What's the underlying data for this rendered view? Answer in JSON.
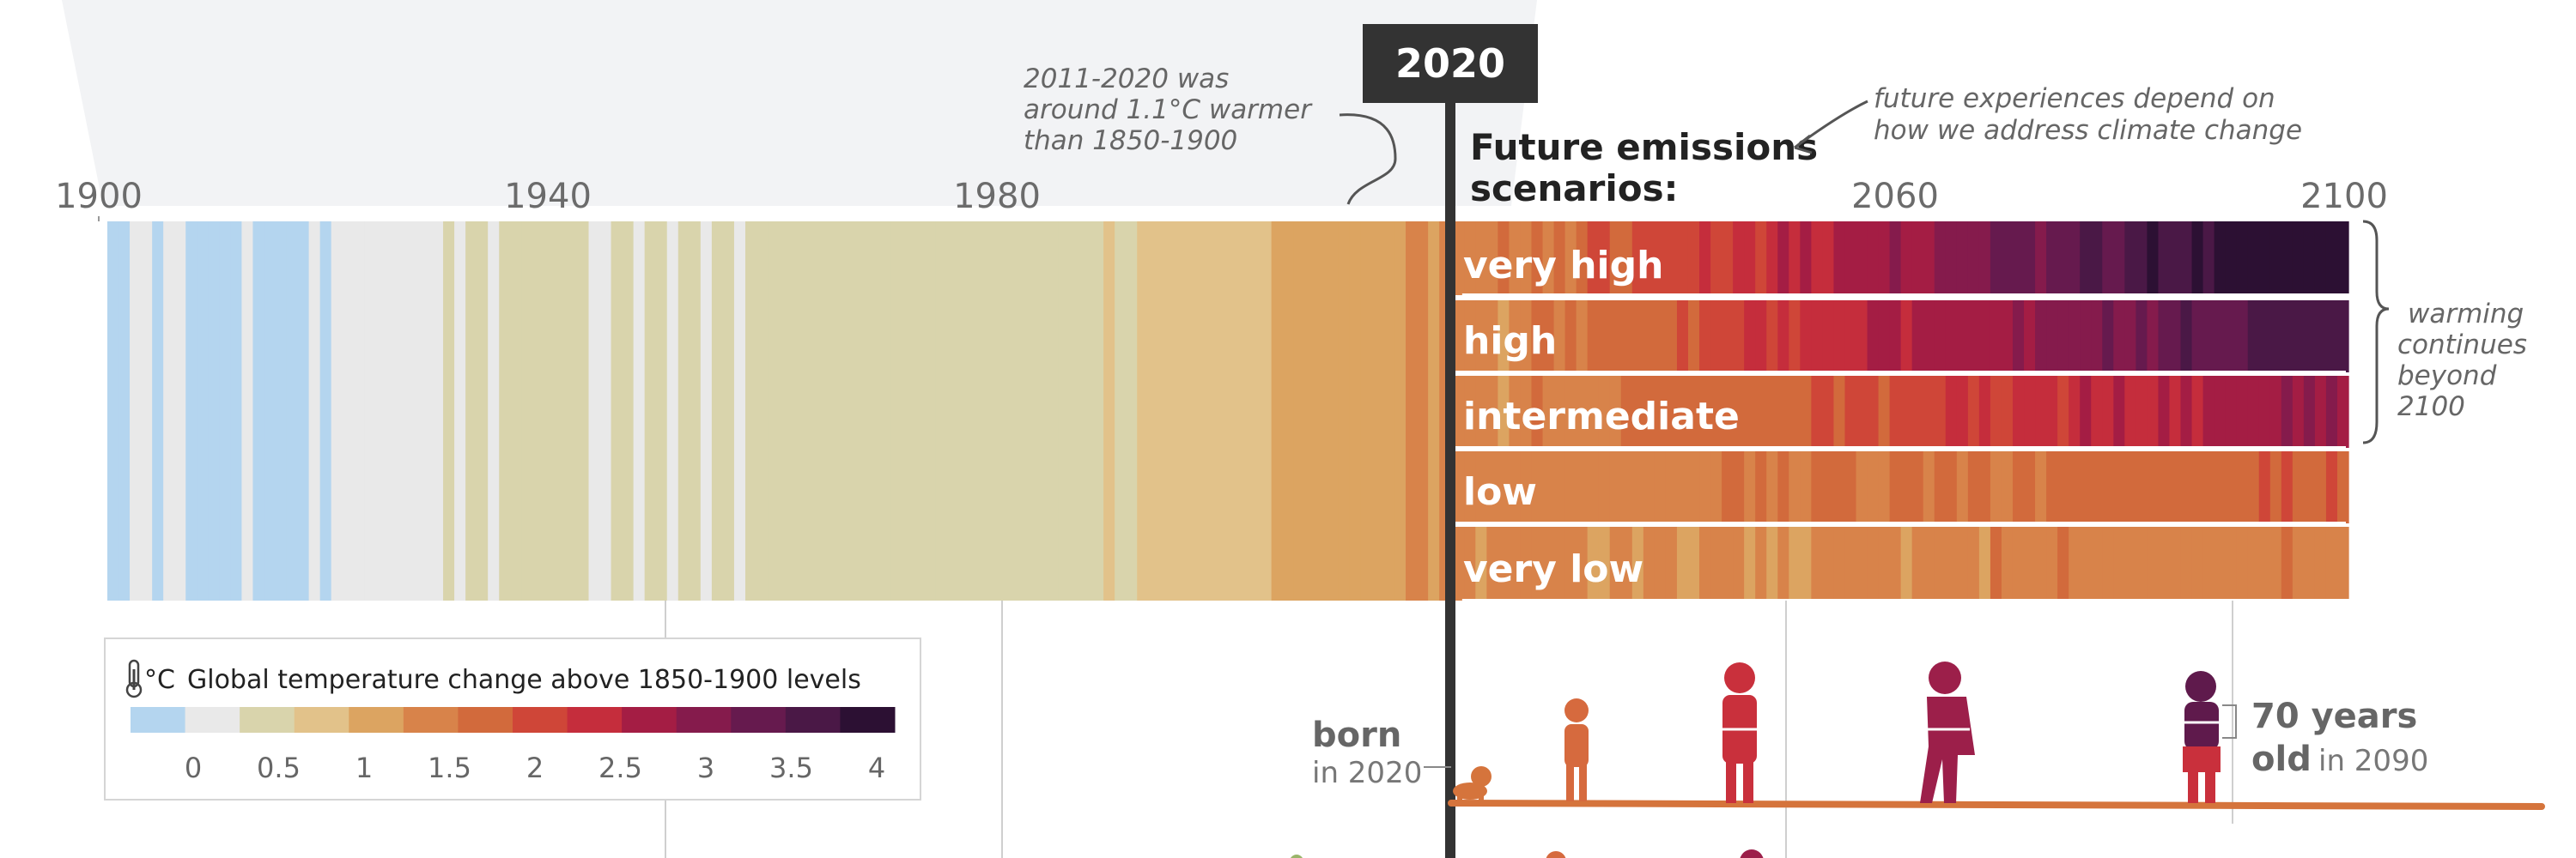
{
  "chart_data": {
    "type": "heatmap",
    "title": "",
    "subtitle": "",
    "x_ticks": [
      "1900",
      "1940",
      "1980",
      "2020",
      "2060",
      "2100"
    ],
    "x_range": [
      1900,
      2100
    ],
    "marker_label": "2020",
    "scenarios_heading_line1": "Future emissions",
    "scenarios_heading_line2": "scenarios:",
    "scenarios": [
      {
        "name": "very high",
        "end_value": 4.1
      },
      {
        "name": "high",
        "end_value": 3.6
      },
      {
        "name": "intermediate",
        "end_value": 2.7
      },
      {
        "name": "low",
        "end_value": 1.8
      },
      {
        "name": "very low",
        "end_value": 1.4
      }
    ],
    "annotations": {
      "observed_line1": "2011-2020 was",
      "observed_line2": "around 1.1°C warmer",
      "observed_line3": "than 1850-1900",
      "future_line1": "future experiences depend on",
      "future_line2": "how we address climate change",
      "beyond_line1": "warming",
      "beyond_line2": "continues",
      "beyond_line3": "beyond",
      "beyond_line4": "2100"
    },
    "legend": {
      "unit": "°C",
      "title": "Global temperature change above 1850-1900 levels",
      "ticks": [
        "0",
        "0.5",
        "1",
        "1.5",
        "2",
        "2.5",
        "3",
        "3.5",
        "4"
      ],
      "colors": [
        "#b4d5ef",
        "#e9e9e9",
        "#d9d4ac",
        "#e2c28a",
        "#dca461",
        "#d8834a",
        "#d26a3c",
        "#cf4638",
        "#c52d3c",
        "#a41d44",
        "#851b4c",
        "#661a4e",
        "#4a1846",
        "#2c1033"
      ]
    },
    "ages": {
      "born_bold": "born",
      "born_small": "in 2020",
      "old_bold_line1": "70 years",
      "old_bold_line2": "old",
      "old_small": "in 2090"
    }
  },
  "colors": {
    "marker": "#333333",
    "person_colors": [
      "#d5743c",
      "#d66a3e",
      "#c9303c",
      "#9c1f4a",
      "#5f1a4c"
    ]
  }
}
